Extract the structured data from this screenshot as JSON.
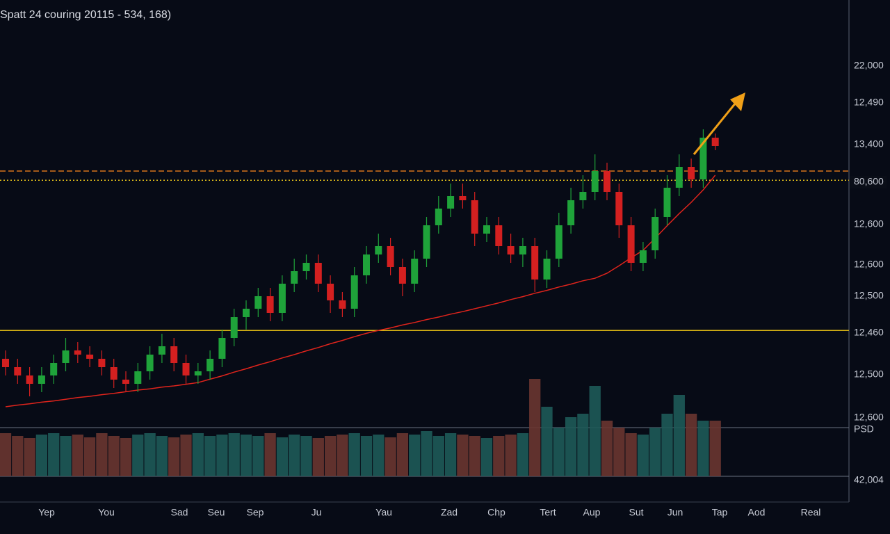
{
  "chart_data": {
    "type": "candlestick",
    "title": "Spatt 24 couring 20115 - 534, 168)",
    "ylim": [
      0,
      120
    ],
    "volume_ylim": [
      0,
      150
    ],
    "up_color": "#1fa33a",
    "down_color": "#d42020",
    "open": [
      34,
      32,
      30,
      28,
      30,
      33,
      36,
      35,
      34,
      32,
      29,
      28,
      31,
      35,
      37,
      33,
      30,
      31,
      34,
      39,
      44,
      46,
      49,
      45,
      52,
      55,
      57,
      52,
      48,
      46,
      54,
      59,
      61,
      56,
      52,
      58,
      66,
      70,
      73,
      72,
      64,
      66,
      61,
      59,
      61,
      53,
      58,
      66,
      72,
      74,
      79,
      74,
      66,
      57,
      60,
      68,
      75,
      80,
      77,
      87
    ],
    "high": [
      36,
      34,
      32,
      32,
      35,
      39,
      38,
      37,
      36,
      34,
      31,
      33,
      37,
      40,
      39,
      35,
      33,
      36,
      41,
      46,
      48,
      51,
      51,
      54,
      58,
      59,
      59,
      54,
      50,
      56,
      61,
      64,
      63,
      58,
      60,
      68,
      73,
      76,
      76,
      74,
      68,
      68,
      64,
      63,
      63,
      60,
      69,
      75,
      78,
      83,
      81,
      76,
      68,
      62,
      70,
      78,
      83,
      82,
      89,
      88
    ],
    "low": [
      30,
      28,
      25,
      26,
      28,
      31,
      33,
      32,
      30,
      27,
      26,
      26,
      29,
      33,
      31,
      28,
      28,
      29,
      32,
      37,
      41,
      44,
      43,
      43,
      50,
      53,
      50,
      45,
      44,
      44,
      52,
      57,
      54,
      49,
      50,
      56,
      64,
      68,
      70,
      61,
      62,
      59,
      57,
      56,
      50,
      51,
      56,
      64,
      70,
      72,
      72,
      63,
      55,
      55,
      58,
      66,
      73,
      75,
      75,
      84
    ],
    "close": [
      32,
      30,
      28,
      30,
      33,
      36,
      35,
      34,
      32,
      29,
      28,
      31,
      35,
      37,
      33,
      30,
      31,
      34,
      39,
      44,
      46,
      49,
      45,
      52,
      55,
      57,
      52,
      48,
      46,
      54,
      59,
      61,
      56,
      52,
      58,
      66,
      70,
      73,
      72,
      64,
      66,
      61,
      59,
      61,
      53,
      58,
      66,
      72,
      74,
      79,
      74,
      66,
      57,
      60,
      68,
      75,
      80,
      77,
      87,
      85
    ],
    "volume": [
      62,
      58,
      55,
      60,
      62,
      58,
      60,
      56,
      62,
      58,
      55,
      60,
      62,
      58,
      56,
      60,
      62,
      58,
      60,
      62,
      60,
      58,
      62,
      56,
      60,
      58,
      55,
      58,
      60,
      62,
      58,
      60,
      56,
      62,
      60,
      65,
      58,
      62,
      60,
      58,
      55,
      58,
      60,
      62,
      140,
      100,
      70,
      85,
      90,
      130,
      80,
      70,
      62,
      60,
      70,
      90,
      117,
      90,
      80,
      80
    ],
    "ma": {
      "color": "#e0241c",
      "values": [
        22.5,
        22.9,
        23.2,
        23.6,
        23.9,
        24.3,
        24.7,
        25.0,
        25.4,
        25.7,
        26.1,
        26.5,
        26.8,
        27.2,
        27.5,
        27.9,
        28.3,
        29.1,
        29.9,
        30.8,
        31.6,
        32.5,
        33.3,
        34.2,
        35.0,
        35.9,
        36.7,
        37.6,
        38.4,
        39.3,
        40.1,
        40.8,
        41.4,
        42.1,
        42.7,
        43.4,
        44.0,
        44.7,
        45.3,
        46.0,
        46.7,
        47.4,
        48.2,
        48.9,
        49.7,
        50.4,
        51.2,
        51.9,
        52.7,
        53.3,
        54.5,
        56.3,
        58.2,
        60.0,
        62.9,
        65.9,
        68.8,
        71.5,
        74.5,
        78.0
      ]
    },
    "levels": [
      {
        "value": 79,
        "color": "#d9751c",
        "style": "dashed"
      },
      {
        "value": 76.8,
        "color": "#e6c21a",
        "style": "dotted"
      },
      {
        "value": 40.8,
        "color": "#d9b514",
        "style": "solid"
      }
    ],
    "price_labels": [
      "22,000",
      "12,490",
      "13,400",
      "80,600",
      "12,600",
      "12,600",
      "12,500",
      "12,460",
      "12,500",
      "12,600",
      "PSD",
      "42,004"
    ],
    "x_labels": [
      "Yep",
      "You",
      "Sad",
      "Seu",
      "Sep",
      "Ju",
      "Yau",
      "Zad",
      "Chp",
      "Tert",
      "Aup",
      "Sut",
      "Jun",
      "Tap",
      "Aod",
      "Real"
    ]
  }
}
